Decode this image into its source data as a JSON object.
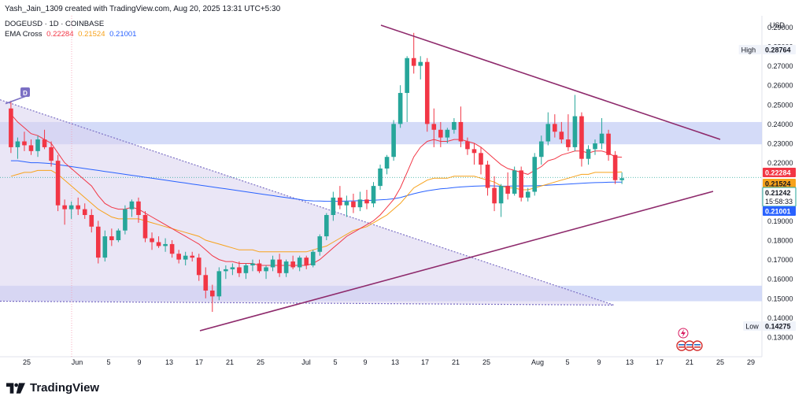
{
  "header": {
    "credit": "Yash_Jain_1309 created with TradingView.com, Aug 20, 2025 13:31 UTC+5:30"
  },
  "symbol": {
    "title": "DOGEUSD · 1D · COINBASE",
    "indicator": "EMA Cross",
    "ema_fast": "0.22284",
    "ema_mid": "0.21524",
    "ema_slow": "0.21001"
  },
  "colors": {
    "up": "#26a69a",
    "down": "#f23645",
    "ema_fast": "#f23645",
    "ema_mid": "#f7a21b",
    "ema_slow": "#2962ff",
    "zone": "#c5cff5",
    "trendline": "#8e2a6c",
    "wedge": "#d9d2ef"
  },
  "footer": {
    "brand": "TradingView"
  },
  "chart_data": {
    "type": "candlestick",
    "title": "DOGEUSD · 1D · COINBASE",
    "currency": "USD",
    "y_ticks": [
      "0.29000",
      "0.28000",
      "0.27000",
      "0.26000",
      "0.25000",
      "0.24000",
      "0.23000",
      "0.22000",
      "0.21000",
      "0.20000",
      "0.19000",
      "0.18000",
      "0.17000",
      "0.16000",
      "0.15000",
      "0.14000",
      "0.13000"
    ],
    "x_ticks": [
      "25",
      "Jun",
      "5",
      "9",
      "13",
      "17",
      "21",
      "25",
      "Jul",
      "5",
      "9",
      "13",
      "17",
      "21",
      "25",
      "Aug",
      "5",
      "9",
      "13",
      "17",
      "21",
      "25",
      "29"
    ],
    "labels": {
      "high": {
        "text": "High",
        "value": "0.28764"
      },
      "low": {
        "text": "Low",
        "value": "0.14275"
      },
      "ema_fast": "0.22284",
      "ema_mid": "0.21524",
      "last_price": "0.21242",
      "countdown": "15:58:33",
      "ema_slow": "0.21001"
    },
    "marker": "D",
    "ohlc": [
      [
        0.248,
        0.252,
        0.225,
        0.228
      ],
      [
        0.228,
        0.233,
        0.222,
        0.231
      ],
      [
        0.231,
        0.236,
        0.226,
        0.229
      ],
      [
        0.229,
        0.232,
        0.224,
        0.226
      ],
      [
        0.226,
        0.234,
        0.223,
        0.232
      ],
      [
        0.232,
        0.237,
        0.227,
        0.228
      ],
      [
        0.228,
        0.231,
        0.218,
        0.221
      ],
      [
        0.221,
        0.224,
        0.195,
        0.198
      ],
      [
        0.198,
        0.201,
        0.188,
        0.196
      ],
      [
        0.196,
        0.2,
        0.191,
        0.198
      ],
      [
        0.198,
        0.202,
        0.193,
        0.196
      ],
      [
        0.196,
        0.199,
        0.191,
        0.193
      ],
      [
        0.193,
        0.196,
        0.184,
        0.187
      ],
      [
        0.187,
        0.19,
        0.168,
        0.171
      ],
      [
        0.171,
        0.185,
        0.169,
        0.182
      ],
      [
        0.182,
        0.186,
        0.177,
        0.18
      ],
      [
        0.18,
        0.186,
        0.179,
        0.185
      ],
      [
        0.185,
        0.198,
        0.183,
        0.196
      ],
      [
        0.196,
        0.201,
        0.192,
        0.2
      ],
      [
        0.2,
        0.202,
        0.189,
        0.193
      ],
      [
        0.193,
        0.195,
        0.179,
        0.181
      ],
      [
        0.181,
        0.184,
        0.175,
        0.179
      ],
      [
        0.179,
        0.182,
        0.176,
        0.177
      ],
      [
        0.177,
        0.181,
        0.174,
        0.178
      ],
      [
        0.178,
        0.18,
        0.171,
        0.173
      ],
      [
        0.173,
        0.175,
        0.168,
        0.17
      ],
      [
        0.17,
        0.174,
        0.167,
        0.172
      ],
      [
        0.172,
        0.174,
        0.169,
        0.171
      ],
      [
        0.171,
        0.173,
        0.159,
        0.162
      ],
      [
        0.162,
        0.166,
        0.15,
        0.154
      ],
      [
        0.154,
        0.157,
        0.143,
        0.151
      ],
      [
        0.151,
        0.166,
        0.149,
        0.164
      ],
      [
        0.164,
        0.167,
        0.16,
        0.165
      ],
      [
        0.165,
        0.168,
        0.162,
        0.166
      ],
      [
        0.166,
        0.169,
        0.161,
        0.163
      ],
      [
        0.163,
        0.168,
        0.16,
        0.167
      ],
      [
        0.167,
        0.17,
        0.164,
        0.168
      ],
      [
        0.168,
        0.17,
        0.163,
        0.164
      ],
      [
        0.164,
        0.167,
        0.16,
        0.166
      ],
      [
        0.166,
        0.172,
        0.164,
        0.17
      ],
      [
        0.17,
        0.173,
        0.161,
        0.163
      ],
      [
        0.163,
        0.17,
        0.161,
        0.169
      ],
      [
        0.169,
        0.172,
        0.165,
        0.166
      ],
      [
        0.166,
        0.172,
        0.164,
        0.171
      ],
      [
        0.171,
        0.172,
        0.165,
        0.167
      ],
      [
        0.167,
        0.175,
        0.166,
        0.174
      ],
      [
        0.174,
        0.183,
        0.172,
        0.182
      ],
      [
        0.182,
        0.194,
        0.18,
        0.193
      ],
      [
        0.193,
        0.205,
        0.19,
        0.202
      ],
      [
        0.202,
        0.208,
        0.196,
        0.198
      ],
      [
        0.198,
        0.203,
        0.192,
        0.2
      ],
      [
        0.2,
        0.204,
        0.194,
        0.197
      ],
      [
        0.197,
        0.205,
        0.195,
        0.201
      ],
      [
        0.201,
        0.206,
        0.196,
        0.199
      ],
      [
        0.199,
        0.21,
        0.197,
        0.208
      ],
      [
        0.208,
        0.219,
        0.206,
        0.217
      ],
      [
        0.217,
        0.224,
        0.214,
        0.223
      ],
      [
        0.223,
        0.242,
        0.221,
        0.24
      ],
      [
        0.24,
        0.26,
        0.238,
        0.256
      ],
      [
        0.256,
        0.275,
        0.241,
        0.274
      ],
      [
        0.274,
        0.287,
        0.266,
        0.27
      ],
      [
        0.27,
        0.275,
        0.263,
        0.272
      ],
      [
        0.272,
        0.274,
        0.236,
        0.24
      ],
      [
        0.24,
        0.248,
        0.228,
        0.237
      ],
      [
        0.237,
        0.241,
        0.228,
        0.233
      ],
      [
        0.233,
        0.238,
        0.23,
        0.237
      ],
      [
        0.237,
        0.243,
        0.235,
        0.241
      ],
      [
        0.241,
        0.249,
        0.228,
        0.231
      ],
      [
        0.231,
        0.233,
        0.224,
        0.227
      ],
      [
        0.227,
        0.23,
        0.219,
        0.225
      ],
      [
        0.225,
        0.228,
        0.214,
        0.219
      ],
      [
        0.219,
        0.221,
        0.203,
        0.207
      ],
      [
        0.207,
        0.213,
        0.195,
        0.199
      ],
      [
        0.199,
        0.209,
        0.192,
        0.208
      ],
      [
        0.208,
        0.215,
        0.201,
        0.204
      ],
      [
        0.204,
        0.218,
        0.203,
        0.216
      ],
      [
        0.216,
        0.218,
        0.2,
        0.202
      ],
      [
        0.202,
        0.207,
        0.2,
        0.205
      ],
      [
        0.205,
        0.225,
        0.203,
        0.223
      ],
      [
        0.223,
        0.234,
        0.219,
        0.231
      ],
      [
        0.231,
        0.246,
        0.229,
        0.24
      ],
      [
        0.24,
        0.245,
        0.233,
        0.236
      ],
      [
        0.236,
        0.241,
        0.23,
        0.232
      ],
      [
        0.232,
        0.245,
        0.226,
        0.228
      ],
      [
        0.228,
        0.255,
        0.226,
        0.244
      ],
      [
        0.244,
        0.246,
        0.218,
        0.222
      ],
      [
        0.222,
        0.229,
        0.219,
        0.227
      ],
      [
        0.227,
        0.232,
        0.224,
        0.23
      ],
      [
        0.23,
        0.243,
        0.227,
        0.235
      ],
      [
        0.235,
        0.237,
        0.221,
        0.224
      ],
      [
        0.224,
        0.226,
        0.209,
        0.211
      ],
      [
        0.211,
        0.215,
        0.209,
        0.212
      ]
    ],
    "ema_fast": [
      0.245,
      0.241,
      0.238,
      0.235,
      0.234,
      0.232,
      0.23,
      0.225,
      0.22,
      0.217,
      0.214,
      0.211,
      0.208,
      0.203,
      0.199,
      0.197,
      0.196,
      0.196,
      0.197,
      0.196,
      0.194,
      0.192,
      0.19,
      0.188,
      0.186,
      0.184,
      0.182,
      0.18,
      0.178,
      0.175,
      0.172,
      0.17,
      0.169,
      0.169,
      0.168,
      0.168,
      0.168,
      0.167,
      0.167,
      0.167,
      0.167,
      0.167,
      0.167,
      0.167,
      0.167,
      0.168,
      0.17,
      0.173,
      0.176,
      0.179,
      0.182,
      0.184,
      0.186,
      0.188,
      0.19,
      0.193,
      0.197,
      0.201,
      0.207,
      0.215,
      0.223,
      0.228,
      0.231,
      0.232,
      0.231,
      0.231,
      0.232,
      0.232,
      0.231,
      0.23,
      0.228,
      0.225,
      0.222,
      0.219,
      0.217,
      0.216,
      0.215,
      0.214,
      0.216,
      0.218,
      0.221,
      0.222,
      0.224,
      0.225,
      0.226,
      0.226,
      0.225,
      0.226,
      0.226,
      0.225,
      0.223,
      0.22284
    ],
    "ema_mid": [
      0.213,
      0.214,
      0.215,
      0.215,
      0.216,
      0.216,
      0.216,
      0.214,
      0.211,
      0.208,
      0.205,
      0.202,
      0.199,
      0.196,
      0.194,
      0.192,
      0.191,
      0.191,
      0.191,
      0.191,
      0.19,
      0.189,
      0.188,
      0.187,
      0.186,
      0.185,
      0.184,
      0.183,
      0.182,
      0.18,
      0.179,
      0.178,
      0.177,
      0.176,
      0.175,
      0.175,
      0.175,
      0.174,
      0.174,
      0.174,
      0.174,
      0.174,
      0.174,
      0.174,
      0.174,
      0.175,
      0.176,
      0.177,
      0.179,
      0.181,
      0.183,
      0.185,
      0.186,
      0.187,
      0.189,
      0.191,
      0.193,
      0.196,
      0.199,
      0.203,
      0.207,
      0.209,
      0.211,
      0.212,
      0.212,
      0.212,
      0.213,
      0.213,
      0.213,
      0.213,
      0.212,
      0.211,
      0.21,
      0.208,
      0.207,
      0.207,
      0.206,
      0.206,
      0.207,
      0.208,
      0.209,
      0.21,
      0.211,
      0.212,
      0.213,
      0.214,
      0.214,
      0.215,
      0.215,
      0.215,
      0.215,
      0.21524
    ],
    "ema_slow": [
      0.221,
      0.221,
      0.2205,
      0.22,
      0.22,
      0.2198,
      0.2195,
      0.219,
      0.2185,
      0.218,
      0.2175,
      0.217,
      0.2165,
      0.216,
      0.2155,
      0.215,
      0.2145,
      0.214,
      0.2135,
      0.213,
      0.2125,
      0.212,
      0.2115,
      0.211,
      0.2105,
      0.21,
      0.2095,
      0.209,
      0.2085,
      0.208,
      0.2075,
      0.207,
      0.2065,
      0.206,
      0.2055,
      0.205,
      0.2045,
      0.204,
      0.2035,
      0.203,
      0.2025,
      0.202,
      0.2015,
      0.201,
      0.2005,
      0.2003,
      0.2002,
      0.2001,
      0.2001,
      0.2001,
      0.2002,
      0.2003,
      0.2004,
      0.2005,
      0.2006,
      0.2008,
      0.201,
      0.2014,
      0.202,
      0.203,
      0.204,
      0.2048,
      0.2055,
      0.206,
      0.2065,
      0.2068,
      0.2072,
      0.2075,
      0.2077,
      0.2079,
      0.208,
      0.2081,
      0.208,
      0.2079,
      0.2079,
      0.208,
      0.208,
      0.208,
      0.2081,
      0.2082,
      0.2084,
      0.2086,
      0.2088,
      0.209,
      0.2092,
      0.2094,
      0.2096,
      0.2097,
      0.2098,
      0.2099,
      0.21,
      0.21001
    ]
  }
}
